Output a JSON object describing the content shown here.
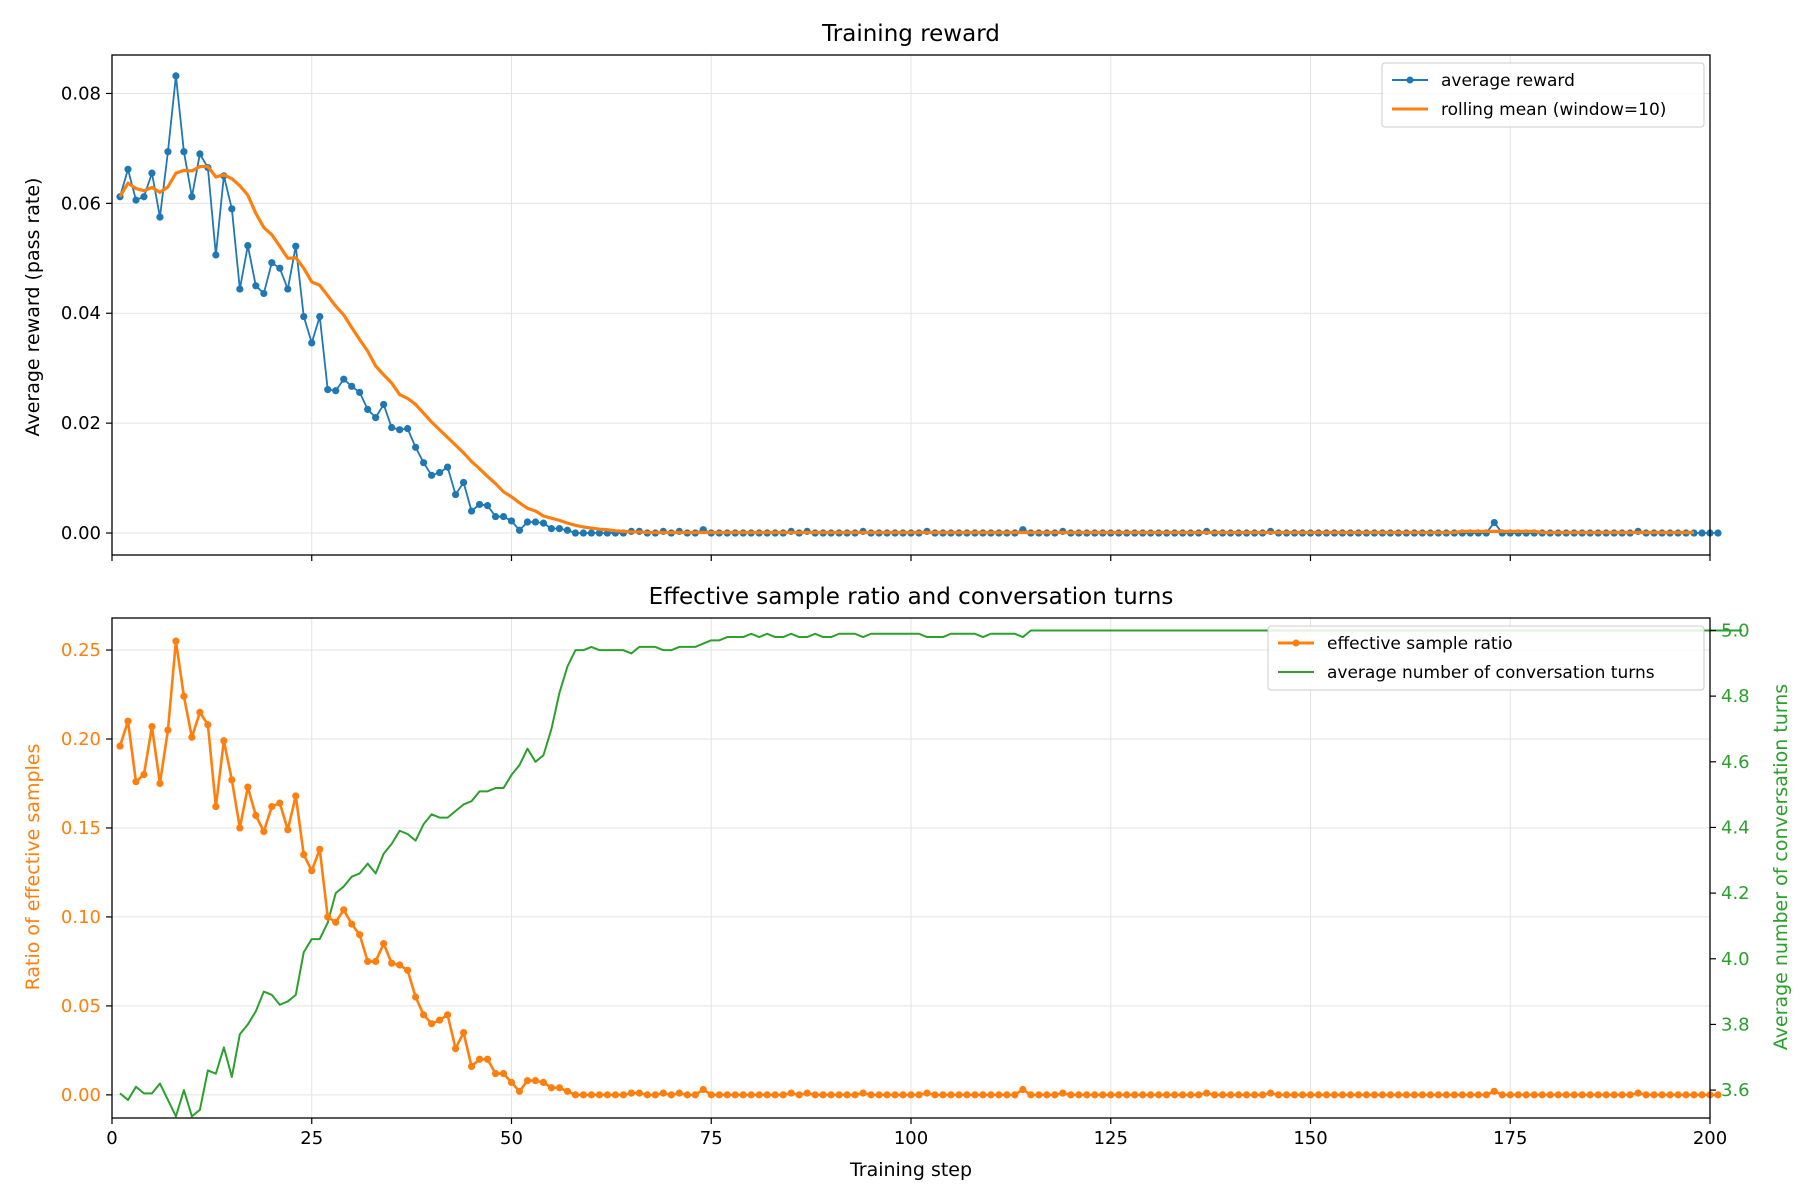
{
  "chart_data": [
    {
      "type": "line",
      "title": "Training reward",
      "xlabel": "",
      "ylabel": "Average reward (pass rate)",
      "xlim": [
        0,
        200
      ],
      "ylim": [
        -0.004,
        0.087
      ],
      "xticks": [
        0,
        25,
        50,
        75,
        100,
        125,
        150,
        175,
        200
      ],
      "yticks": [
        0.0,
        0.02,
        0.04,
        0.06,
        0.08
      ],
      "ytick_labels": [
        "0.00",
        "0.02",
        "0.04",
        "0.06",
        "0.08"
      ],
      "grid": true,
      "legend": "top-right",
      "series": [
        {
          "name": "average reward",
          "color": "#1f77b4",
          "marker": "circle",
          "x_start": 1,
          "values": [
            0.0612,
            0.0662,
            0.0606,
            0.0612,
            0.0655,
            0.0575,
            0.0694,
            0.0832,
            0.0694,
            0.0612,
            0.069,
            0.0665,
            0.0506,
            0.065,
            0.059,
            0.0444,
            0.0523,
            0.045,
            0.0436,
            0.0492,
            0.0482,
            0.0444,
            0.0522,
            0.0394,
            0.0346,
            0.0394,
            0.0261,
            0.0259,
            0.028,
            0.0267,
            0.0256,
            0.0225,
            0.021,
            0.0234,
            0.0192,
            0.0188,
            0.019,
            0.0156,
            0.0128,
            0.0105,
            0.011,
            0.012,
            0.007,
            0.0092,
            0.004,
            0.0052,
            0.005,
            0.003,
            0.003,
            0.0022,
            0.0005,
            0.002,
            0.002,
            0.0018,
            0.0008,
            0.0008,
            0.0005,
            0.0,
            0.0,
            0.0,
            0.0,
            0.0,
            0.0,
            0.0,
            0.0003,
            0.0003,
            0.0,
            0.0,
            0.0003,
            0.0,
            0.0003,
            0.0,
            0.0,
            0.0006,
            0.0,
            0.0,
            0.0,
            0.0,
            0.0,
            0.0,
            0.0,
            0.0,
            0.0,
            0.0,
            0.0003,
            0.0,
            0.0003,
            0.0,
            0.0,
            0.0,
            0.0,
            0.0,
            0.0,
            0.0003,
            0.0,
            0.0,
            0.0,
            0.0,
            0.0,
            0.0,
            0.0,
            0.0003,
            0.0,
            0.0,
            0.0,
            0.0,
            0.0,
            0.0,
            0.0,
            0.0,
            0.0,
            0.0,
            0.0,
            0.0006,
            0.0,
            0.0,
            0.0,
            0.0,
            0.0003,
            0.0,
            0.0,
            0.0,
            0.0,
            0.0,
            0.0,
            0.0,
            0.0,
            0.0,
            0.0,
            0.0,
            0.0,
            0.0,
            0.0,
            0.0,
            0.0,
            0.0,
            0.0003,
            0.0,
            0.0,
            0.0,
            0.0,
            0.0,
            0.0,
            0.0,
            0.0003,
            0.0,
            0.0,
            0.0,
            0.0,
            0.0,
            0.0,
            0.0,
            0.0,
            0.0,
            0.0,
            0.0,
            0.0,
            0.0,
            0.0,
            0.0,
            0.0,
            0.0,
            0.0,
            0.0,
            0.0,
            0.0,
            0.0,
            0.0,
            0.0,
            0.0,
            0.0,
            0.0,
            0.0019,
            0.0,
            0.0,
            0.0,
            0.0,
            0.0,
            0.0,
            0.0,
            0.0,
            0.0,
            0.0,
            0.0,
            0.0,
            0.0,
            0.0,
            0.0,
            0.0,
            0.0,
            0.0003,
            0.0,
            0.0,
            0.0,
            0.0,
            0.0,
            0.0,
            0.0,
            0.0,
            0.0,
            0.0
          ]
        },
        {
          "name": "rolling mean (window=10)",
          "color": "#ff7f0e",
          "marker": "none",
          "x_start": 1,
          "values": [
            0.0612,
            0.0637,
            0.0627,
            0.0623,
            0.0629,
            0.062,
            0.063,
            0.0655,
            0.066,
            0.0659,
            0.0667,
            0.0667,
            0.0648,
            0.0652,
            0.0645,
            0.0632,
            0.0615,
            0.0582,
            0.0556,
            0.0543,
            0.0522,
            0.05,
            0.0501,
            0.0482,
            0.0457,
            0.0451,
            0.0432,
            0.0413,
            0.0397,
            0.0374,
            0.0352,
            0.0331,
            0.0304,
            0.0288,
            0.0273,
            0.0252,
            0.0245,
            0.0234,
            0.0218,
            0.0202,
            0.0188,
            0.0174,
            0.016,
            0.0146,
            0.013,
            0.0117,
            0.0103,
            0.009,
            0.0075,
            0.0066,
            0.0055,
            0.0045,
            0.004,
            0.0031,
            0.0027,
            0.0023,
            0.0018,
            0.0014,
            0.0011,
            0.0009,
            0.0007,
            0.0006,
            0.0004,
            0.0003,
            0.0002,
            0.0002,
            0.0001,
            0.0001,
            0.0001,
            0.0001,
            0.0001,
            0.0001,
            0.0001,
            0.0001,
            0.0001,
            0.0001,
            0.0001,
            0.0001,
            0.0001,
            0.0001,
            0.0001,
            0.0001,
            0.0001,
            0.0001,
            0.0001,
            0.0001,
            0.0001,
            0.0001,
            0.0001,
            0.0001,
            0.0001,
            0.0001,
            0.0001,
            0.0001,
            0.0001,
            0.0001,
            0.0001,
            0.0001,
            0.0001,
            0.0001,
            0.0001,
            0.0001,
            0.0001,
            0.0001,
            0.0001,
            0.0001,
            0.0001,
            0.0001,
            0.0001,
            0.0001,
            0.0001,
            0.0001,
            0.0001,
            0.0001,
            0.0001,
            0.0001,
            0.0001,
            0.0001,
            0.0001,
            0.0001,
            0.0001,
            0.0001,
            0.0001,
            0.0001,
            0.0001,
            0.0001,
            0.0001,
            0.0001,
            0.0001,
            0.0001,
            0.0001,
            0.0001,
            0.0001,
            0.0001,
            0.0001,
            0.0001,
            0.0001,
            0.0001,
            0.0001,
            0.0001,
            0.0001,
            0.0001,
            0.0001,
            0.0001,
            0.0001,
            0.0001,
            0.0001,
            0.0001,
            0.0001,
            0.0001,
            0.0001,
            0.0001,
            0.0001,
            0.0001,
            0.0001,
            0.0001,
            0.0001,
            0.0001,
            0.0001,
            0.0001,
            0.0001,
            0.0001,
            0.0001,
            0.0001,
            0.0001,
            0.0001,
            0.0001,
            0.0001,
            0.0003,
            0.0003,
            0.0003,
            0.0003,
            0.0003,
            0.0003,
            0.0003,
            0.0003,
            0.0003,
            0.0003,
            0.0001,
            0.0001,
            0.0001,
            0.0001,
            0.0001,
            0.0001,
            0.0001,
            0.0001,
            0.0001,
            0.0001,
            0.0001,
            0.0001,
            0.0001,
            0.0001,
            0.0001,
            0.0001,
            0.0001,
            0.0001,
            0.0001,
            0.0001
          ]
        }
      ]
    },
    {
      "type": "line",
      "title": "Effective sample ratio and conversation turns",
      "xlabel": "Training step",
      "ylabel": "Ratio of effective samples",
      "ylabel_right": "Average number of conversation turns",
      "xlim": [
        0,
        200
      ],
      "ylim": [
        -0.013,
        0.268
      ],
      "ylim_right": [
        3.515,
        5.038
      ],
      "xticks": [
        0,
        25,
        50,
        75,
        100,
        125,
        150,
        175,
        200
      ],
      "yticks": [
        0.0,
        0.05,
        0.1,
        0.15,
        0.2,
        0.25
      ],
      "ytick_labels": [
        "0.00",
        "0.05",
        "0.10",
        "0.15",
        "0.20",
        "0.25"
      ],
      "yticks_right": [
        3.6,
        3.8,
        4.0,
        4.2,
        4.4,
        4.6,
        4.8,
        5.0
      ],
      "ytick_labels_right": [
        "3.6",
        "3.8",
        "4.0",
        "4.2",
        "4.4",
        "4.6",
        "4.8",
        "5.0"
      ],
      "grid": true,
      "legend": "top-right",
      "series": [
        {
          "name": "effective sample ratio",
          "color": "#ff7f0e",
          "marker": "circle",
          "axis": "left",
          "x_start": 1,
          "values": [
            0.196,
            0.21,
            0.176,
            0.18,
            0.207,
            0.175,
            0.205,
            0.255,
            0.224,
            0.201,
            0.215,
            0.208,
            0.162,
            0.199,
            0.177,
            0.15,
            0.173,
            0.157,
            0.148,
            0.162,
            0.164,
            0.149,
            0.168,
            0.135,
            0.126,
            0.138,
            0.1,
            0.097,
            0.104,
            0.096,
            0.09,
            0.075,
            0.075,
            0.085,
            0.074,
            0.073,
            0.07,
            0.055,
            0.045,
            0.04,
            0.042,
            0.045,
            0.026,
            0.035,
            0.016,
            0.02,
            0.02,
            0.012,
            0.012,
            0.007,
            0.002,
            0.008,
            0.008,
            0.007,
            0.004,
            0.004,
            0.002,
            0.0,
            0.0,
            0.0,
            0.0,
            0.0,
            0.0,
            0.0,
            0.001,
            0.001,
            0.0,
            0.0,
            0.001,
            0.0,
            0.001,
            0.0,
            0.0,
            0.003,
            0.0,
            0.0,
            0.0,
            0.0,
            0.0,
            0.0,
            0.0,
            0.0,
            0.0,
            0.0,
            0.001,
            0.0,
            0.001,
            0.0,
            0.0,
            0.0,
            0.0,
            0.0,
            0.0,
            0.001,
            0.0,
            0.0,
            0.0,
            0.0,
            0.0,
            0.0,
            0.0,
            0.001,
            0.0,
            0.0,
            0.0,
            0.0,
            0.0,
            0.0,
            0.0,
            0.0,
            0.0,
            0.0,
            0.0,
            0.003,
            0.0,
            0.0,
            0.0,
            0.0,
            0.001,
            0.0,
            0.0,
            0.0,
            0.0,
            0.0,
            0.0,
            0.0,
            0.0,
            0.0,
            0.0,
            0.0,
            0.0,
            0.0,
            0.0,
            0.0,
            0.0,
            0.0,
            0.001,
            0.0,
            0.0,
            0.0,
            0.0,
            0.0,
            0.0,
            0.0,
            0.001,
            0.0,
            0.0,
            0.0,
            0.0,
            0.0,
            0.0,
            0.0,
            0.0,
            0.0,
            0.0,
            0.0,
            0.0,
            0.0,
            0.0,
            0.0,
            0.0,
            0.0,
            0.0,
            0.0,
            0.0,
            0.0,
            0.0,
            0.0,
            0.0,
            0.0,
            0.0,
            0.0,
            0.002,
            0.0,
            0.0,
            0.0,
            0.0,
            0.0,
            0.0,
            0.0,
            0.0,
            0.0,
            0.0,
            0.0,
            0.0,
            0.0,
            0.0,
            0.0,
            0.0,
            0.0,
            0.001,
            0.0,
            0.0,
            0.0,
            0.0,
            0.0,
            0.0,
            0.0,
            0.0,
            0.0,
            0.0
          ]
        },
        {
          "name": "average number of conversation turns",
          "color": "#2ca02c",
          "marker": "none",
          "axis": "right",
          "x_start": 1,
          "values": [
            3.59,
            3.57,
            3.61,
            3.59,
            3.59,
            3.62,
            3.57,
            3.52,
            3.6,
            3.52,
            3.54,
            3.66,
            3.65,
            3.73,
            3.64,
            3.77,
            3.8,
            3.84,
            3.9,
            3.89,
            3.86,
            3.87,
            3.89,
            4.02,
            4.06,
            4.06,
            4.11,
            4.2,
            4.22,
            4.25,
            4.26,
            4.29,
            4.26,
            4.32,
            4.35,
            4.39,
            4.38,
            4.36,
            4.41,
            4.44,
            4.43,
            4.43,
            4.45,
            4.47,
            4.48,
            4.51,
            4.51,
            4.52,
            4.52,
            4.56,
            4.59,
            4.64,
            4.6,
            4.62,
            4.7,
            4.81,
            4.89,
            4.94,
            4.94,
            4.95,
            4.94,
            4.94,
            4.94,
            4.94,
            4.93,
            4.95,
            4.95,
            4.95,
            4.94,
            4.94,
            4.95,
            4.95,
            4.95,
            4.96,
            4.97,
            4.97,
            4.98,
            4.98,
            4.98,
            4.99,
            4.98,
            4.99,
            4.98,
            4.98,
            4.99,
            4.98,
            4.98,
            4.99,
            4.98,
            4.98,
            4.99,
            4.99,
            4.99,
            4.98,
            4.99,
            4.99,
            4.99,
            4.99,
            4.99,
            4.99,
            4.99,
            4.98,
            4.98,
            4.98,
            4.99,
            4.99,
            4.99,
            4.99,
            4.98,
            4.99,
            4.99,
            4.99,
            4.99,
            4.98,
            5.0,
            5.0,
            5.0,
            5.0,
            5.0,
            5.0,
            5.0,
            5.0,
            5.0,
            5.0,
            5.0,
            5.0,
            5.0,
            5.0,
            5.0,
            5.0,
            5.0,
            5.0,
            5.0,
            5.0,
            5.0,
            5.0,
            5.0,
            5.0,
            5.0,
            5.0,
            5.0,
            5.0,
            5.0,
            5.0,
            5.0,
            5.0,
            5.0,
            5.0,
            5.0,
            5.0,
            5.0,
            5.0,
            5.0,
            5.0,
            5.0,
            5.0,
            5.0,
            5.0,
            5.0,
            5.0,
            5.0,
            5.0,
            5.0,
            5.0,
            5.0,
            5.0,
            5.0,
            5.0,
            5.0,
            5.0,
            5.0,
            5.0,
            5.0,
            5.0,
            5.0,
            5.0,
            5.0,
            5.0,
            5.0,
            5.0,
            5.0,
            5.0,
            5.0,
            5.0,
            5.0,
            5.0,
            5.0,
            5.0,
            5.0,
            5.0,
            5.0,
            5.0,
            5.0,
            5.0,
            5.0,
            5.0,
            5.0,
            5.0,
            5.0,
            5.0,
            5.0,
            5.0,
            5.0,
            5.0
          ]
        }
      ]
    }
  ]
}
